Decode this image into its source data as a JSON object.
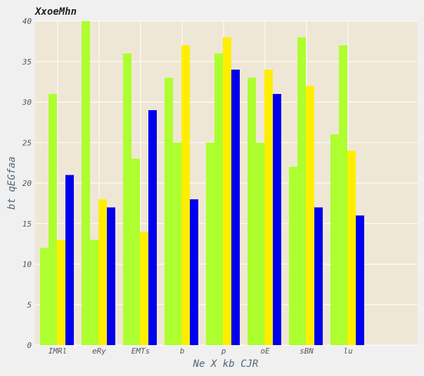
{
  "chart_data": {
    "type": "bar",
    "title": "XxoeMhn",
    "xlabel": "Ne X kb CJR",
    "ylabel": "bt qEGfaa",
    "categories": [
      "IMRl",
      "eRy",
      "EMTs",
      "b",
      "p",
      "oE",
      "sBN",
      "lu"
    ],
    "ylim": [
      0,
      40
    ],
    "yticks": [
      0,
      5,
      10,
      15,
      20,
      25,
      30,
      35,
      40
    ],
    "grid": true,
    "series": [
      {
        "color": "#adff2f",
        "values": [
          12,
          40,
          36,
          33,
          25,
          33,
          22,
          26
        ]
      },
      {
        "color": "#adff2f",
        "values": [
          31,
          13,
          23,
          25,
          36,
          25,
          38,
          37
        ]
      },
      {
        "color": "#ffee00",
        "values": [
          13,
          18,
          14,
          37,
          38,
          34,
          32,
          24
        ]
      },
      {
        "color": "#0000ee",
        "values": [
          21,
          17,
          29,
          18,
          34,
          31,
          17,
          16
        ]
      }
    ],
    "colors": {
      "plot_background": "#efe7d5",
      "page_background": "#f0f0f0",
      "grid": "#ffffff"
    }
  }
}
